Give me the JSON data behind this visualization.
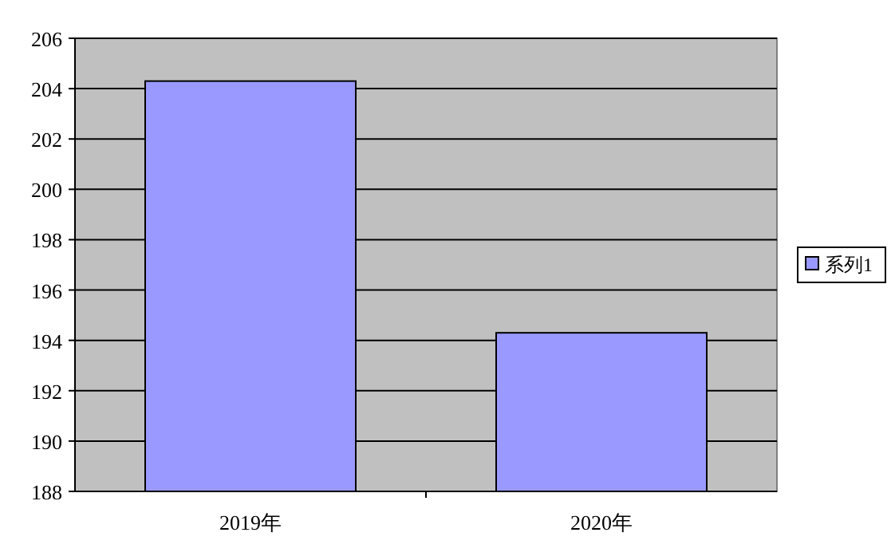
{
  "chart_data": {
    "type": "bar",
    "categories": [
      "2019年",
      "2020年"
    ],
    "series": [
      {
        "name": "系列1",
        "color": "#9999ff",
        "values": [
          204.3,
          194.3
        ]
      }
    ],
    "ylim": [
      188,
      206
    ],
    "yticks": [
      188,
      190,
      192,
      194,
      196,
      198,
      200,
      202,
      204,
      206
    ],
    "grid": "y",
    "legend": "right"
  }
}
